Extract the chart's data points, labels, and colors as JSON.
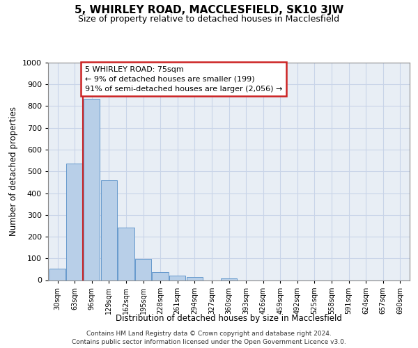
{
  "title_line1": "5, WHIRLEY ROAD, MACCLESFIELD, SK10 3JW",
  "title_line2": "Size of property relative to detached houses in Macclesfield",
  "xlabel": "Distribution of detached houses by size in Macclesfield",
  "ylabel": "Number of detached properties",
  "footnote_line1": "Contains HM Land Registry data © Crown copyright and database right 2024.",
  "footnote_line2": "Contains public sector information licensed under the Open Government Licence v3.0.",
  "bar_labels": [
    "30sqm",
    "63sqm",
    "96sqm",
    "129sqm",
    "162sqm",
    "195sqm",
    "228sqm",
    "261sqm",
    "294sqm",
    "327sqm",
    "360sqm",
    "393sqm",
    "426sqm",
    "459sqm",
    "492sqm",
    "525sqm",
    "558sqm",
    "591sqm",
    "624sqm",
    "657sqm",
    "690sqm"
  ],
  "bar_values": [
    52,
    535,
    835,
    458,
    242,
    98,
    37,
    22,
    13,
    0,
    9,
    0,
    0,
    0,
    0,
    0,
    0,
    0,
    0,
    0,
    0
  ],
  "bar_color": "#b8cfe8",
  "bar_edge_color": "#6699cc",
  "ylim": [
    0,
    1000
  ],
  "yticks": [
    0,
    100,
    200,
    300,
    400,
    500,
    600,
    700,
    800,
    900,
    1000
  ],
  "property_line_x": 1.5,
  "annotation_line1": "5 WHIRLEY ROAD: 75sqm",
  "annotation_line2": "← 9% of detached houses are smaller (199)",
  "annotation_line3": "91% of semi-detached houses are larger (2,056) →",
  "grid_color": "#c8d4e8",
  "background_color": "#e8eef5",
  "red_color": "#cc2222"
}
